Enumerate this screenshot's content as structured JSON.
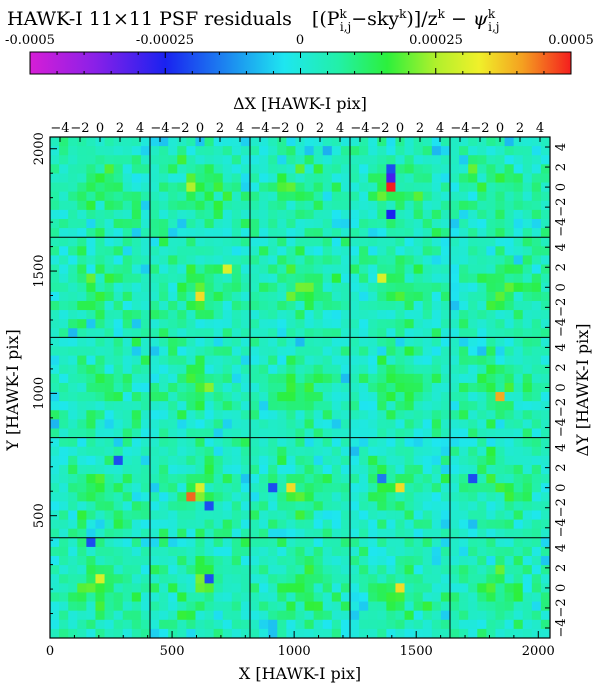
{
  "chart_data": {
    "type": "heatmap",
    "title": "HAWK-I 11×11 PSF residuals",
    "title_formula": {
      "open": "[(P",
      "p_sup": "k",
      "p_sub": "i,j",
      "minus_sky": "−sky",
      "sky_sup": "k",
      "close_div": ")]/z",
      "z_sup": "k",
      "minus": " − ",
      "psi": "ψ",
      "psi_sup": "k",
      "psi_sub": "i,j"
    },
    "colorbar": {
      "tick_labels": [
        "-0.0005",
        "-0.00025",
        "0",
        "0.00025",
        "0.0005"
      ],
      "ticks": [
        -0.0005,
        -0.00025,
        0,
        0.00025,
        0.0005
      ],
      "range": [
        -0.0005,
        0.0005
      ]
    },
    "top_axis_label": "ΔX [HAWK-I pix]",
    "top_tick_labels": [
      "−4",
      "−2",
      "0",
      "2",
      "4"
    ],
    "right_axis_label": "ΔY [HAWK-I pix]",
    "right_tick_labels": [
      "−4",
      "−2",
      "0",
      "2",
      "4"
    ],
    "x_axis_label": "X [HAWK-I pix]",
    "x_tick_labels": [
      "0",
      "500",
      "1000",
      "1500",
      "2000"
    ],
    "x_ticks": [
      0,
      500,
      1000,
      1500,
      2000
    ],
    "xlim": [
      0,
      2048
    ],
    "y_axis_label": "Y [HAWK-I pix]",
    "y_tick_labels": [
      "500",
      "1000",
      "1500",
      "2000"
    ],
    "y_ticks": [
      500,
      1000,
      1500,
      2000
    ],
    "ylim": [
      0,
      2048
    ],
    "panel_grid": [
      5,
      5
    ],
    "cells_per_panel": [
      11,
      11
    ],
    "dxy_range": [
      -5,
      5
    ],
    "noise_level": 5e-05,
    "peaks": [
      {
        "panel": [
          0,
          3
        ],
        "cell": [
          5,
          4
        ],
        "value": 0.0005
      },
      {
        "panel": [
          0,
          3
        ],
        "cell": [
          4,
          4
        ],
        "value": -0.0003
      },
      {
        "panel": [
          0,
          3
        ],
        "cell": [
          3,
          4
        ],
        "value": -0.0002
      },
      {
        "panel": [
          0,
          3
        ],
        "cell": [
          6,
          3
        ],
        "value": 0.0002
      },
      {
        "panel": [
          0,
          3
        ],
        "cell": [
          8,
          4
        ],
        "value": -0.00025
      },
      {
        "panel": [
          0,
          1
        ],
        "cell": [
          5,
          4
        ],
        "value": 0.00025
      },
      {
        "panel": [
          0,
          4
        ],
        "cell": [
          3,
          2
        ],
        "value": 0.0002
      },
      {
        "panel": [
          1,
          1
        ],
        "cell": [
          6,
          5
        ],
        "value": 0.00035
      },
      {
        "panel": [
          1,
          1
        ],
        "cell": [
          3,
          8
        ],
        "value": 0.0003
      },
      {
        "panel": [
          1,
          3
        ],
        "cell": [
          4,
          3
        ],
        "value": 0.0003
      },
      {
        "panel": [
          2,
          4
        ],
        "cell": [
          6,
          5
        ],
        "value": 0.0004
      },
      {
        "panel": [
          2,
          0
        ],
        "cell": [
          4,
          5
        ],
        "value": 0.00015
      },
      {
        "panel": [
          3,
          1
        ],
        "cell": [
          6,
          4
        ],
        "value": 0.00045
      },
      {
        "panel": [
          3,
          1
        ],
        "cell": [
          5,
          5
        ],
        "value": 0.0003
      },
      {
        "panel": [
          3,
          1
        ],
        "cell": [
          7,
          6
        ],
        "value": -0.0002
      },
      {
        "panel": [
          3,
          2
        ],
        "cell": [
          5,
          4
        ],
        "value": 0.00035
      },
      {
        "panel": [
          3,
          2
        ],
        "cell": [
          5,
          2
        ],
        "value": -0.0002
      },
      {
        "panel": [
          3,
          3
        ],
        "cell": [
          5,
          5
        ],
        "value": 0.00035
      },
      {
        "panel": [
          3,
          3
        ],
        "cell": [
          4,
          3
        ],
        "value": -0.00015
      },
      {
        "panel": [
          3,
          0
        ],
        "cell": [
          2,
          7
        ],
        "value": -0.0002
      },
      {
        "panel": [
          3,
          4
        ],
        "cell": [
          4,
          2
        ],
        "value": -0.0002
      },
      {
        "panel": [
          4,
          1
        ],
        "cell": [
          4,
          6
        ],
        "value": -0.0002
      },
      {
        "panel": [
          4,
          1
        ],
        "cell": [
          5,
          5
        ],
        "value": 0.0002
      },
      {
        "panel": [
          4,
          0
        ],
        "cell": [
          4,
          5
        ],
        "value": 0.0003
      },
      {
        "panel": [
          4,
          0
        ],
        "cell": [
          0,
          4
        ],
        "value": -0.0002
      },
      {
        "panel": [
          4,
          3
        ],
        "cell": [
          5,
          5
        ],
        "value": 0.00035
      },
      {
        "panel": [
          4,
          2
        ],
        "cell": [
          5,
          3
        ],
        "value": 0.00015
      },
      {
        "panel": [
          4,
          4
        ],
        "cell": [
          3,
          5
        ],
        "value": 0.0002
      }
    ]
  }
}
